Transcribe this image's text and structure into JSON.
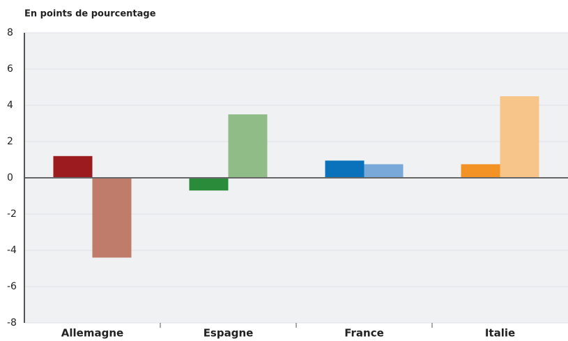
{
  "chart_data": {
    "type": "bar",
    "title": "En points de pourcentage",
    "categories": [
      "Allemagne",
      "Espagne",
      "France",
      "Italie"
    ],
    "series": [
      {
        "colors": [
          "#9b1b1f",
          "#2a8b3a",
          "#0a72bb",
          "#f39325"
        ],
        "values": [
          1.2,
          -0.7,
          0.95,
          0.75
        ]
      },
      {
        "colors": [
          "#c07c6a",
          "#8fbc87",
          "#79a9d9",
          "#f7c48a"
        ],
        "values": [
          -4.4,
          3.5,
          0.75,
          4.5
        ]
      }
    ],
    "ylim": [
      -8,
      8
    ],
    "yticks": [
      -8,
      -6,
      -4,
      -2,
      0,
      2,
      4,
      6,
      8
    ],
    "grid": true
  }
}
